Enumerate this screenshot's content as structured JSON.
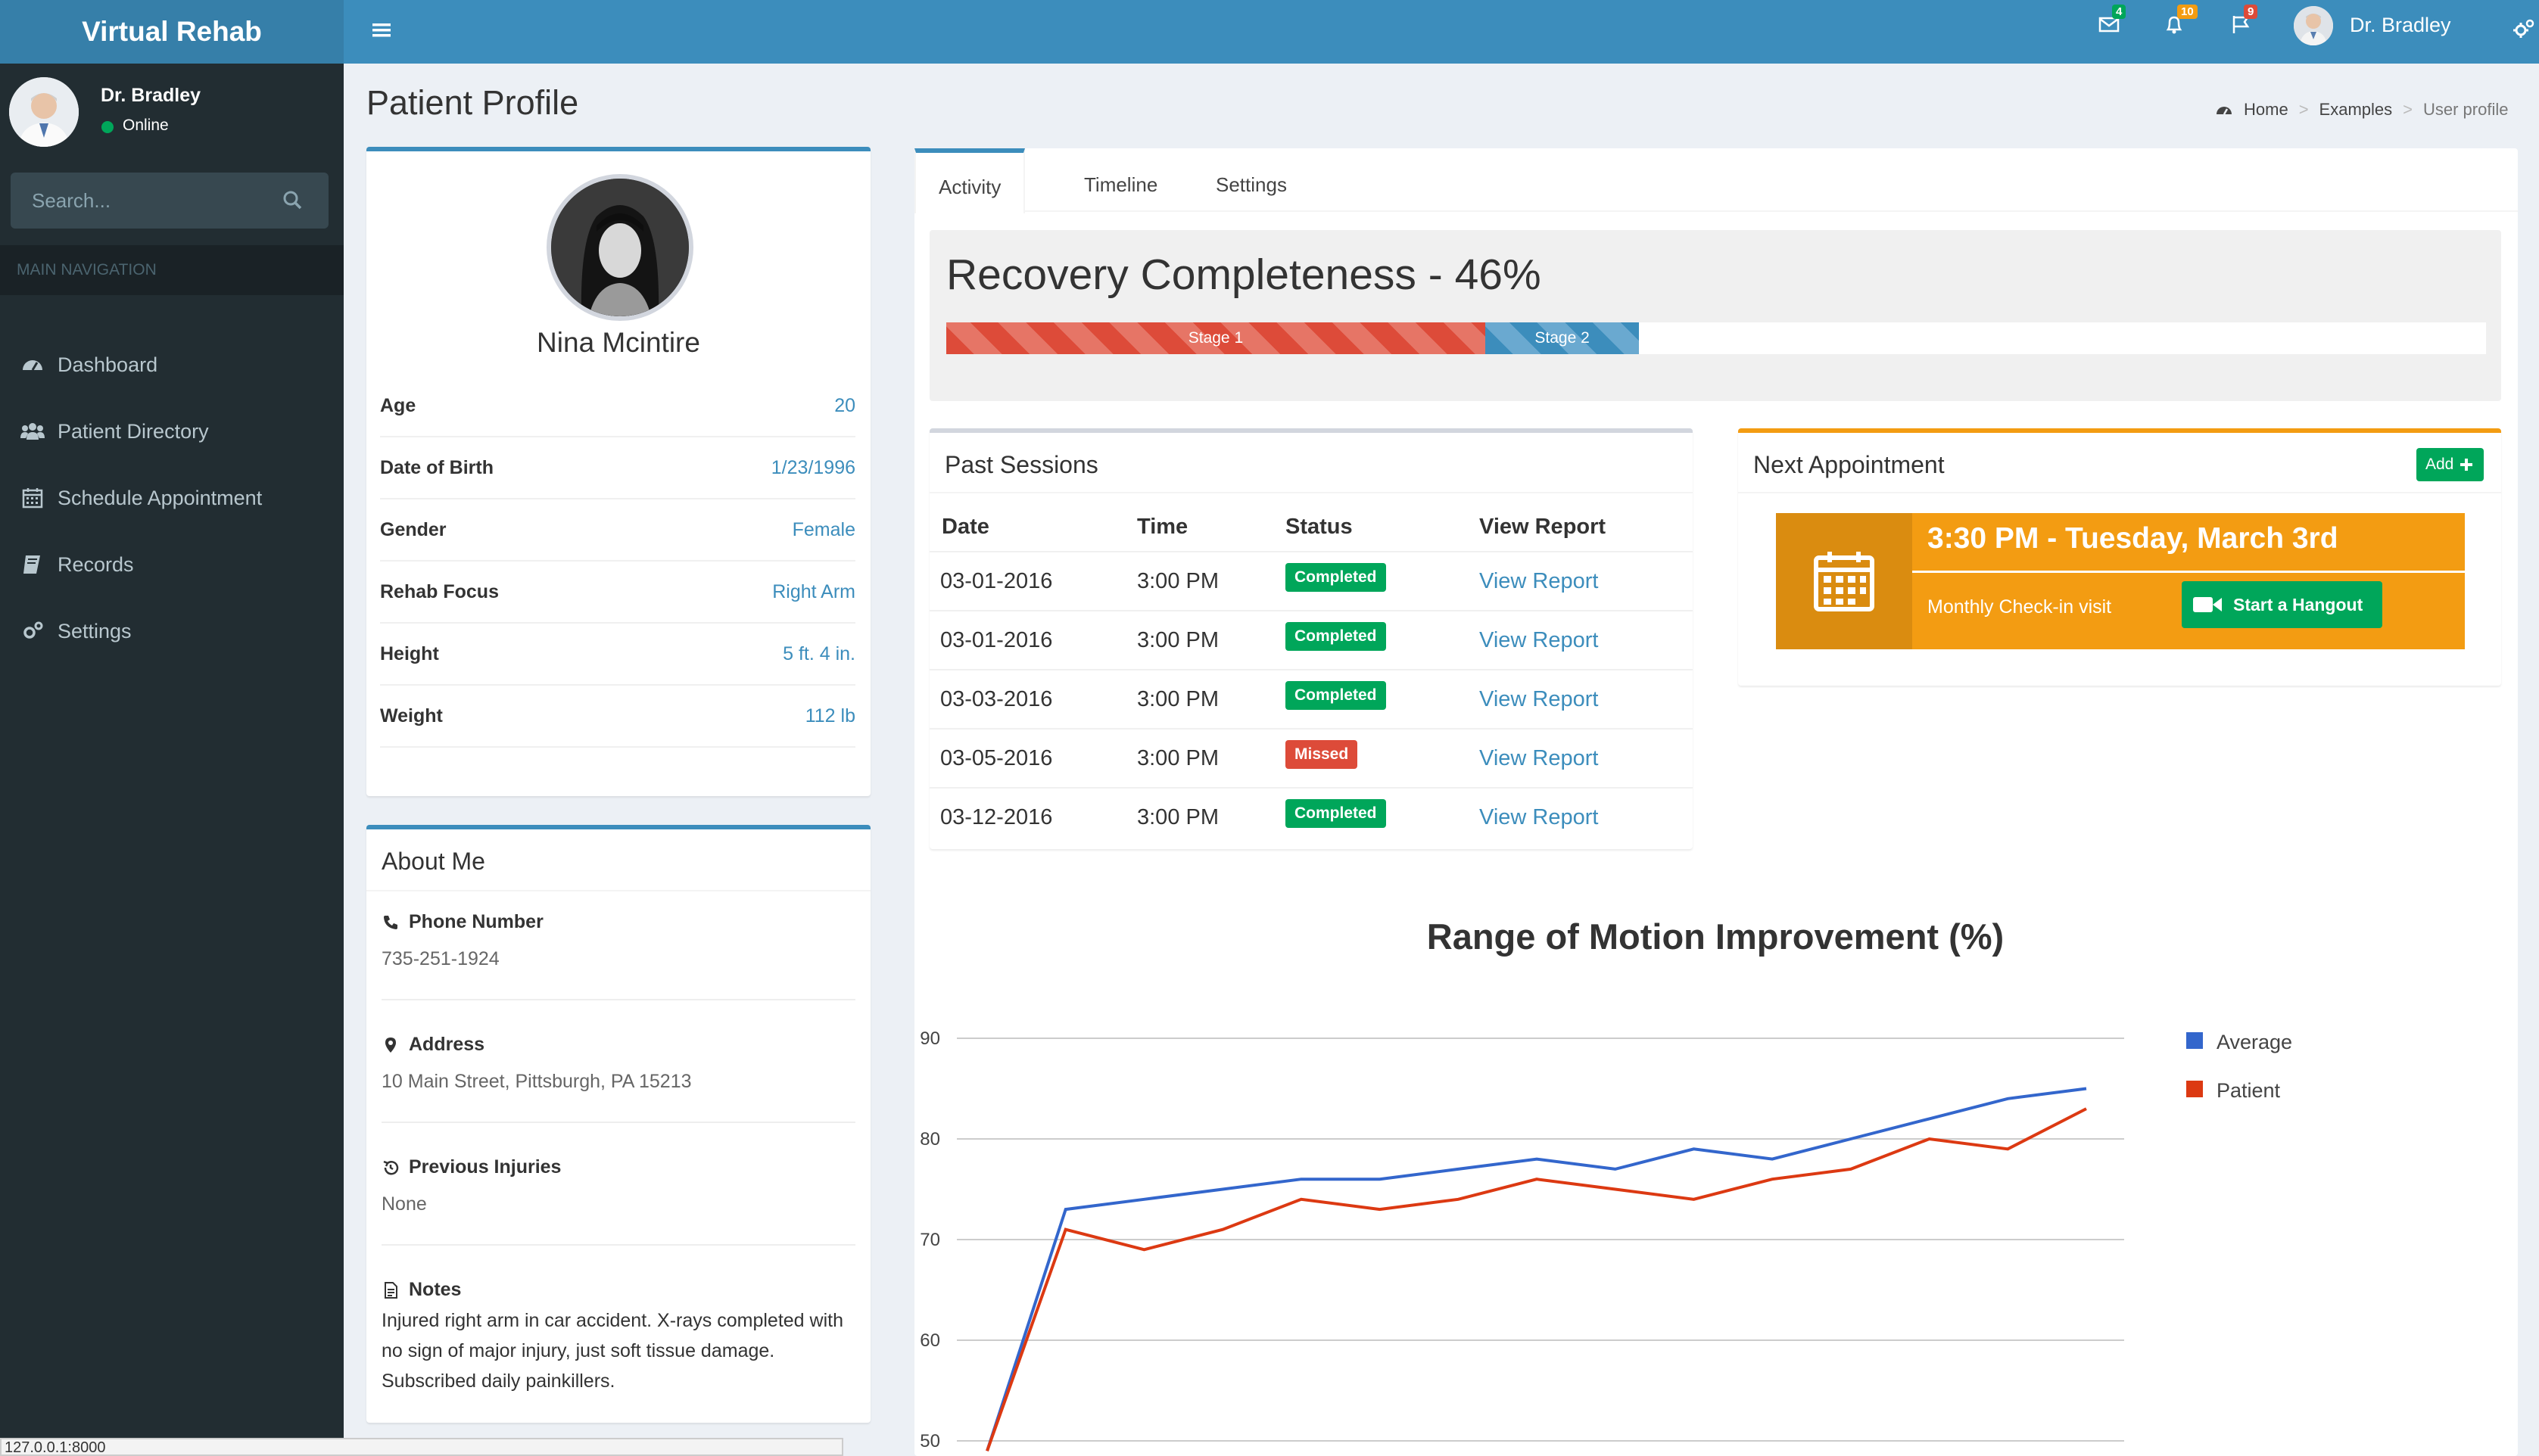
{
  "app": {
    "title": "Virtual Rehab"
  },
  "topbar": {
    "badges": {
      "messages": "4",
      "notifications": "10",
      "flags": "9"
    },
    "badge_colors": {
      "messages": "#00a65a",
      "notifications": "#f39c12",
      "flags": "#dd4b39"
    },
    "username": "Dr. Bradley"
  },
  "sidebar": {
    "user": {
      "name": "Dr. Bradley",
      "status": "Online"
    },
    "search_placeholder": "Search...",
    "header": "MAIN NAVIGATION",
    "items": [
      {
        "label": "Dashboard",
        "icon": "dashboard-icon"
      },
      {
        "label": "Patient Directory",
        "icon": "users-icon"
      },
      {
        "label": "Schedule Appointment",
        "icon": "calendar-icon"
      },
      {
        "label": "Records",
        "icon": "book-icon"
      },
      {
        "label": "Settings",
        "icon": "gears-icon"
      }
    ]
  },
  "header": {
    "title": "Patient Profile",
    "breadcrumb": [
      "Home",
      "Examples",
      "User profile"
    ]
  },
  "profile": {
    "name": "Nina Mcintire",
    "rows": [
      {
        "label": "Age",
        "value": "20"
      },
      {
        "label": "Date of Birth",
        "value": "1/23/1996"
      },
      {
        "label": "Gender",
        "value": "Female"
      },
      {
        "label": "Rehab Focus",
        "value": "Right Arm"
      },
      {
        "label": "Height",
        "value": "5 ft. 4 in."
      },
      {
        "label": "Weight",
        "value": "112 lb"
      }
    ]
  },
  "about": {
    "title": "About Me",
    "phone_label": "Phone Number",
    "phone": "735-251-1924",
    "address_label": "Address",
    "address": "10 Main Street, Pittsburgh, PA 15213",
    "injuries_label": "Previous Injuries",
    "injuries": "None",
    "notes_label": "Notes",
    "notes": "Injured right arm in car accident. X-rays completed with no sign of major injury, just soft tissue damage. Subscribed daily painkillers."
  },
  "tabs": [
    "Activity",
    "Timeline",
    "Settings"
  ],
  "recovery": {
    "title": "Recovery Completeness - 46%",
    "stages": [
      {
        "label": "Stage 1",
        "percent": 35
      },
      {
        "label": "Stage 2",
        "percent": 10
      }
    ]
  },
  "sessions": {
    "title": "Past Sessions",
    "columns": [
      "Date",
      "Time",
      "Status",
      "View Report"
    ],
    "rows": [
      {
        "date": "03-01-2016",
        "time": "3:00 PM",
        "status": "Completed",
        "link": "View Report"
      },
      {
        "date": "03-01-2016",
        "time": "3:00 PM",
        "status": "Completed",
        "link": "View Report"
      },
      {
        "date": "03-03-2016",
        "time": "3:00 PM",
        "status": "Completed",
        "link": "View Report"
      },
      {
        "date": "03-05-2016",
        "time": "3:00 PM",
        "status": "Missed",
        "link": "View Report"
      },
      {
        "date": "03-12-2016",
        "time": "3:00 PM",
        "status": "Completed",
        "link": "View Report"
      }
    ]
  },
  "appointment": {
    "title": "Next Appointment",
    "add_label": "Add",
    "time": "3:30 PM - Tuesday, March 3rd",
    "description": "Monthly Check-in visit",
    "hangout_label": "Start a Hangout"
  },
  "chart_data": {
    "type": "line",
    "title": "Range of Motion Improvement (%)",
    "ylim": [
      50,
      90
    ],
    "yticks": [
      90,
      80,
      70,
      60,
      50
    ],
    "grid": true,
    "legend_position": "right",
    "x": [
      0,
      1,
      2,
      3,
      4,
      5,
      6,
      7,
      8,
      9,
      10,
      11,
      12,
      13,
      14
    ],
    "series": [
      {
        "name": "Average",
        "color": "#3366cc",
        "values": [
          49,
          73,
          74,
          75,
          76,
          76,
          77,
          78,
          77,
          79,
          78,
          80,
          82,
          84,
          85
        ]
      },
      {
        "name": "Patient",
        "color": "#dc3912",
        "values": [
          49,
          71,
          69,
          71,
          74,
          73,
          74,
          76,
          75,
          74,
          76,
          77,
          80,
          79,
          83
        ]
      }
    ]
  },
  "statusbar": {
    "text": "127.0.0.1:8000"
  }
}
